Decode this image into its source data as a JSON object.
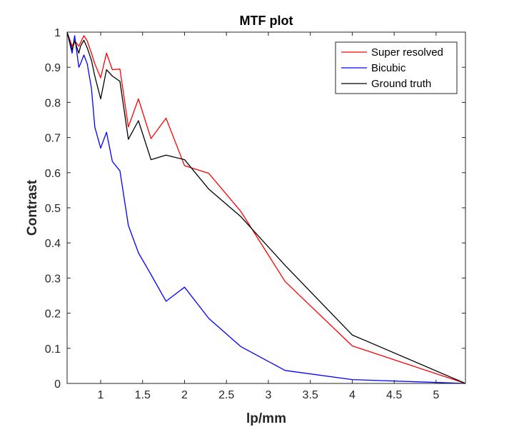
{
  "chart_data": {
    "type": "line",
    "title": "MTF plot",
    "xlabel": "lp/mm",
    "ylabel": "Contrast",
    "xlim": [
      0.6,
      5.35
    ],
    "ylim": [
      0,
      1
    ],
    "xticks": [
      1,
      1.5,
      2,
      2.5,
      3,
      3.5,
      4,
      4.5,
      5
    ],
    "xtick_labels": [
      "1",
      "1.5",
      "2",
      "2.5",
      "3",
      "3.5",
      "4",
      "4.5",
      "5"
    ],
    "yticks": [
      0,
      0.1,
      0.2,
      0.3,
      0.4,
      0.5,
      0.6,
      0.7,
      0.8,
      0.9,
      1
    ],
    "ytick_labels": [
      "0",
      "0.1",
      "0.2",
      "0.3",
      "0.4",
      "0.5",
      "0.6",
      "0.7",
      "0.8",
      "0.9",
      "1"
    ],
    "grid": false,
    "legend_position": "top-right",
    "series": [
      {
        "name": "Super resolved",
        "color": "#ff0000",
        "x": [
          0.6,
          0.66,
          0.69,
          0.74,
          0.76,
          0.8,
          0.84,
          0.89,
          0.93,
          1.0,
          1.07,
          1.14,
          1.23,
          1.33,
          1.45,
          1.6,
          1.78,
          2.0,
          2.29,
          2.67,
          3.2,
          4.0,
          5.35
        ],
        "y": [
          1.0,
          0.96,
          0.975,
          0.96,
          0.97,
          0.99,
          0.975,
          0.94,
          0.91,
          0.87,
          0.94,
          0.893,
          0.895,
          0.73,
          0.81,
          0.697,
          0.755,
          0.62,
          0.598,
          0.49,
          0.29,
          0.107,
          0.0
        ]
      },
      {
        "name": "Bicubic",
        "color": "#0000ff",
        "x": [
          0.6,
          0.66,
          0.69,
          0.74,
          0.76,
          0.8,
          0.84,
          0.89,
          0.93,
          1.0,
          1.07,
          1.14,
          1.23,
          1.33,
          1.45,
          1.6,
          1.78,
          2.0,
          2.29,
          2.67,
          3.2,
          4.0,
          5.35
        ],
        "y": [
          1.0,
          0.94,
          0.99,
          0.9,
          0.91,
          0.935,
          0.91,
          0.84,
          0.73,
          0.67,
          0.715,
          0.632,
          0.605,
          0.45,
          0.372,
          0.31,
          0.234,
          0.274,
          0.185,
          0.105,
          0.037,
          0.011,
          0.0
        ]
      },
      {
        "name": "Ground truth",
        "color": "#000000",
        "x": [
          0.6,
          0.66,
          0.69,
          0.74,
          0.76,
          0.8,
          0.84,
          0.89,
          0.93,
          1.0,
          1.07,
          1.14,
          1.23,
          1.33,
          1.45,
          1.6,
          1.78,
          2.0,
          2.29,
          2.67,
          3.2,
          4.0,
          5.35
        ],
        "y": [
          1.0,
          0.95,
          0.975,
          0.94,
          0.96,
          0.977,
          0.955,
          0.92,
          0.875,
          0.81,
          0.893,
          0.875,
          0.86,
          0.695,
          0.748,
          0.637,
          0.65,
          0.637,
          0.553,
          0.475,
          0.336,
          0.138,
          0.0
        ]
      }
    ]
  }
}
